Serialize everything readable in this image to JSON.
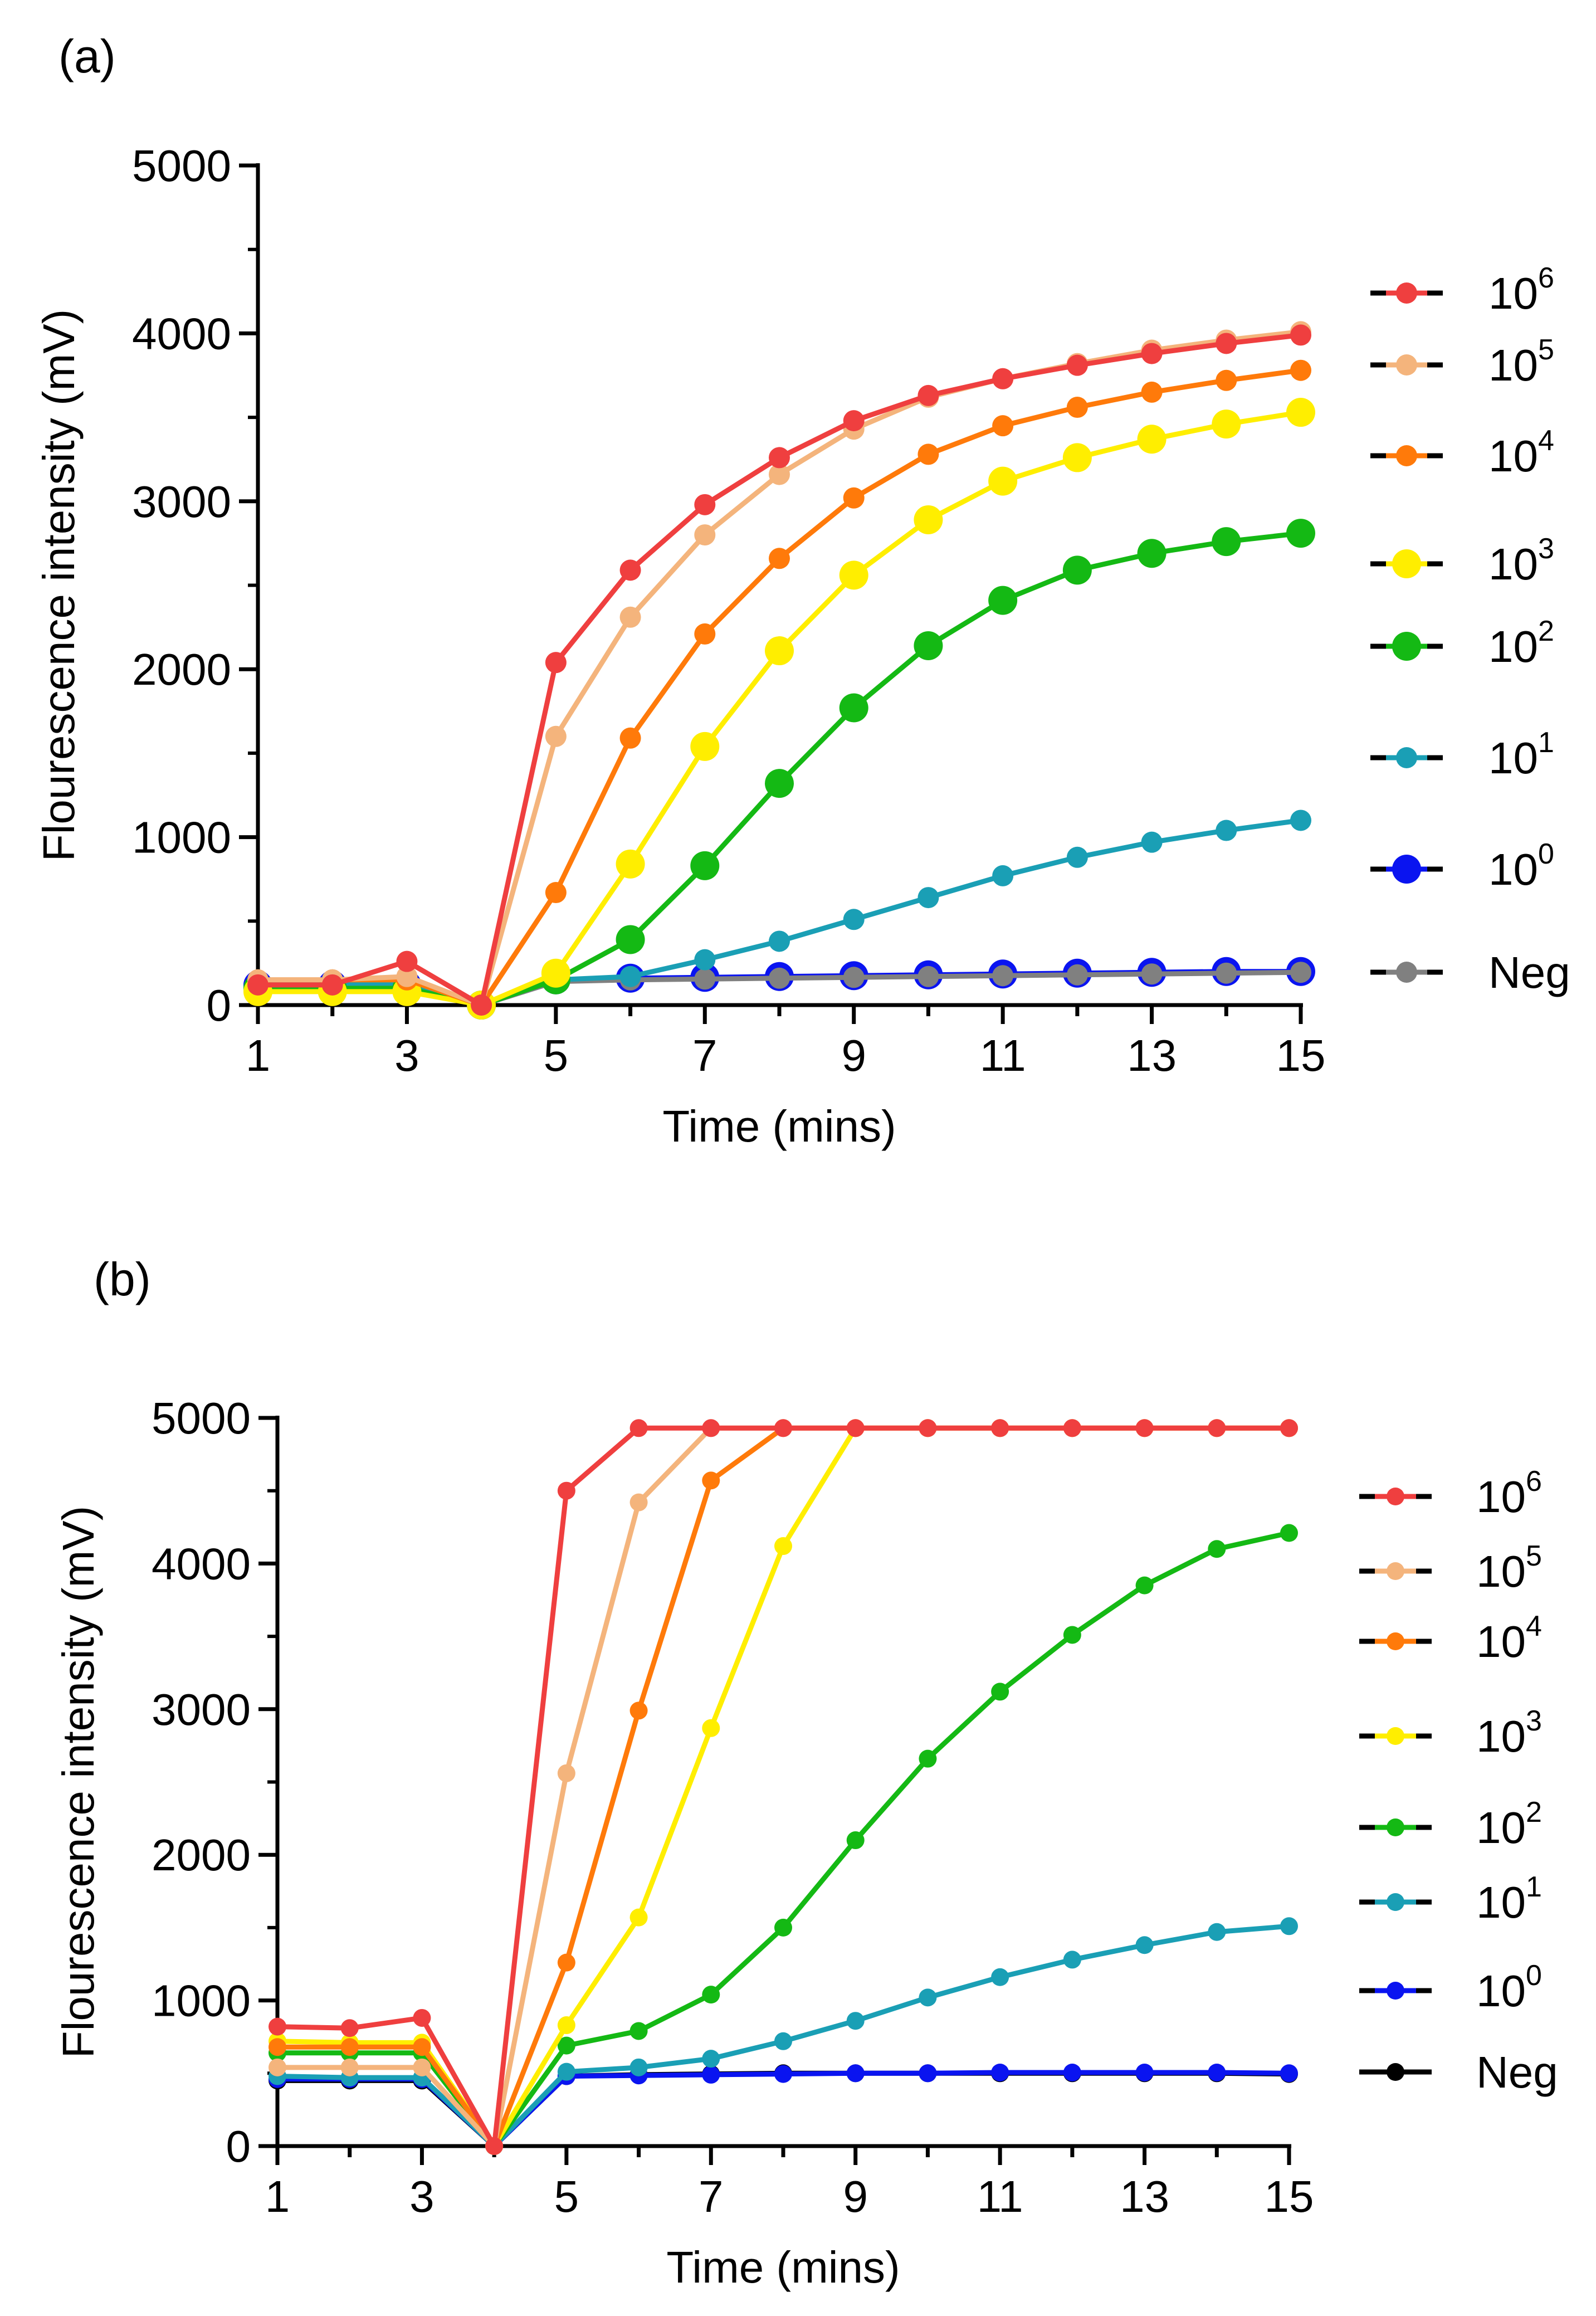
{
  "chart_data": [
    {
      "type": "line",
      "panel_label": "(a)",
      "xlabel": "Time (mins)",
      "ylabel": "Flourescence intensity (mV)",
      "xlim": [
        1,
        15
      ],
      "ylim": [
        0,
        5000
      ],
      "xticks": [
        "1",
        "3",
        "5",
        "7",
        "9",
        "11",
        "13",
        "15"
      ],
      "yticks": [
        "0",
        "1000",
        "2000",
        "3000",
        "4000",
        "5000"
      ],
      "legend_position": "right",
      "x": [
        1,
        2,
        3,
        4,
        5,
        6,
        7,
        8,
        9,
        10,
        11,
        12,
        13,
        14,
        15
      ],
      "series": [
        {
          "name": "10",
          "sup": "0",
          "color": "#0a14f0",
          "marker": "large",
          "values": [
            120,
            120,
            120,
            0,
            150,
            160,
            165,
            170,
            175,
            180,
            185,
            190,
            195,
            200,
            200
          ]
        },
        {
          "name": "Neg",
          "color": "#808080",
          "marker": "medium",
          "values": [
            110,
            110,
            110,
            0,
            140,
            150,
            155,
            160,
            165,
            170,
            175,
            180,
            185,
            190,
            195
          ]
        },
        {
          "name": "10",
          "sup": "1",
          "color": "#1a9fb5",
          "marker": "medium",
          "values": [
            130,
            130,
            130,
            0,
            150,
            170,
            270,
            380,
            510,
            640,
            770,
            880,
            970,
            1040,
            1100
          ]
        },
        {
          "name": "10",
          "sup": "2",
          "color": "#14b914",
          "marker": "large",
          "values": [
            100,
            100,
            100,
            0,
            150,
            390,
            830,
            1320,
            1770,
            2140,
            2410,
            2590,
            2690,
            2760,
            2810
          ]
        },
        {
          "name": "10",
          "sup": "3",
          "color": "#ffee00",
          "marker": "large",
          "values": [
            80,
            80,
            80,
            0,
            190,
            840,
            1540,
            2110,
            2560,
            2890,
            3120,
            3260,
            3370,
            3460,
            3530
          ]
        },
        {
          "name": "10",
          "sup": "4",
          "color": "#ff7a0a",
          "marker": "medium",
          "values": [
            150,
            150,
            150,
            0,
            670,
            1590,
            2210,
            2660,
            3020,
            3280,
            3450,
            3560,
            3650,
            3720,
            3780
          ]
        },
        {
          "name": "10",
          "sup": "5",
          "color": "#f4b47c",
          "marker": "medium",
          "values": [
            150,
            150,
            170,
            0,
            1600,
            2310,
            2800,
            3160,
            3430,
            3620,
            3730,
            3820,
            3900,
            3960,
            4010
          ]
        },
        {
          "name": "10",
          "sup": "6",
          "color": "#ef3f3f",
          "marker": "medium",
          "values": [
            120,
            120,
            260,
            0,
            2040,
            2590,
            2980,
            3260,
            3480,
            3630,
            3730,
            3810,
            3880,
            3940,
            3990
          ]
        }
      ],
      "legend_order": [
        7,
        6,
        5,
        4,
        3,
        2,
        0,
        1
      ]
    },
    {
      "type": "line",
      "panel_label": "(b)",
      "xlabel": "Time (mins)",
      "ylabel": "Flourescence intensity (mV)",
      "xlim": [
        1,
        15
      ],
      "ylim": [
        0,
        5000
      ],
      "xticks": [
        "1",
        "3",
        "5",
        "7",
        "9",
        "11",
        "13",
        "15"
      ],
      "yticks": [
        "0",
        "1000",
        "2000",
        "3000",
        "4000",
        "5000"
      ],
      "legend_position": "right",
      "x": [
        1,
        2,
        3,
        4,
        5,
        6,
        7,
        8,
        9,
        10,
        11,
        12,
        13,
        14,
        15
      ],
      "series": [
        {
          "name": "Neg",
          "color": "#000000",
          "marker": "small",
          "values": [
            450,
            450,
            450,
            0,
            480,
            490,
            495,
            500,
            500,
            500,
            500,
            500,
            500,
            500,
            495
          ]
        },
        {
          "name": "10",
          "sup": "0",
          "color": "#0a14f0",
          "marker": "small",
          "values": [
            460,
            460,
            460,
            0,
            480,
            485,
            490,
            495,
            500,
            500,
            505,
            505,
            505,
            505,
            500
          ]
        },
        {
          "name": "10",
          "sup": "1",
          "color": "#1a9fb5",
          "marker": "small",
          "values": [
            480,
            470,
            470,
            0,
            510,
            540,
            600,
            720,
            860,
            1020,
            1160,
            1280,
            1380,
            1470,
            1510
          ]
        },
        {
          "name": "10",
          "sup": "2",
          "color": "#14b914",
          "marker": "small",
          "values": [
            640,
            640,
            640,
            0,
            690,
            790,
            1040,
            1500,
            2100,
            2660,
            3120,
            3510,
            3850,
            4100,
            4210
          ]
        },
        {
          "name": "10",
          "sup": "3",
          "color": "#ffee00",
          "marker": "small",
          "values": [
            720,
            710,
            710,
            0,
            830,
            1570,
            2870,
            4120,
            4930,
            4930,
            4930,
            4930,
            4930,
            4930,
            4930
          ]
        },
        {
          "name": "10",
          "sup": "4",
          "color": "#ff7a0a",
          "marker": "small",
          "values": [
            680,
            680,
            680,
            0,
            1260,
            2990,
            4570,
            4930,
            4930,
            4930,
            4930,
            4930,
            4930,
            4930,
            4930
          ]
        },
        {
          "name": "10",
          "sup": "5",
          "color": "#f4b47c",
          "marker": "small",
          "values": [
            540,
            540,
            540,
            0,
            2560,
            4420,
            4930,
            4930,
            4930,
            4930,
            4930,
            4930,
            4930,
            4930,
            4930
          ]
        },
        {
          "name": "10",
          "sup": "6",
          "color": "#ef3f3f",
          "marker": "small",
          "values": [
            820,
            810,
            880,
            0,
            4500,
            4930,
            4930,
            4930,
            4930,
            4930,
            4930,
            4930,
            4930,
            4930,
            4930
          ]
        }
      ],
      "legend_order": [
        7,
        6,
        5,
        4,
        3,
        2,
        1,
        0
      ]
    }
  ]
}
